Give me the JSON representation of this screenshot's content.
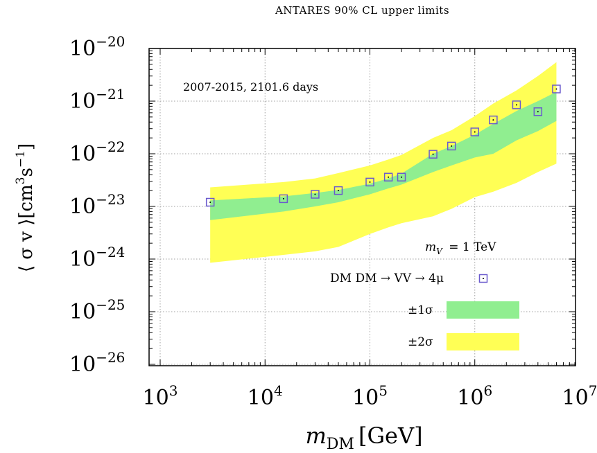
{
  "chart_data": {
    "type": "scatter",
    "title": "ANTARES 90% CL upper limits",
    "xlabel_var": "m",
    "xlabel_sub": "DM",
    "xlabel_unit": "[GeV]",
    "ylabel_parts": [
      "⟨ σ v ⟩[cm",
      "3",
      "s",
      "−1",
      "]"
    ],
    "xscale": "log",
    "yscale": "log",
    "xlim": [
      1000,
      10000000
    ],
    "ylim": [
      1e-26,
      1e-20
    ],
    "x_ticks": [
      {
        "base": "10",
        "exp": "3",
        "value": 1000
      },
      {
        "base": "10",
        "exp": "4",
        "value": 10000
      },
      {
        "base": "10",
        "exp": "5",
        "value": 100000
      },
      {
        "base": "10",
        "exp": "6",
        "value": 1000000
      },
      {
        "base": "10",
        "exp": "7",
        "value": 10000000
      }
    ],
    "y_ticks": [
      {
        "base": "10",
        "exp": "−20",
        "value": 1e-20
      },
      {
        "base": "10",
        "exp": "−21",
        "value": 1e-21
      },
      {
        "base": "10",
        "exp": "−22",
        "value": 1e-22
      },
      {
        "base": "10",
        "exp": "−23",
        "value": 1e-23
      },
      {
        "base": "10",
        "exp": "−24",
        "value": 1e-24
      },
      {
        "base": "10",
        "exp": "−25",
        "value": 1e-25
      },
      {
        "base": "10",
        "exp": "−26",
        "value": 1e-26
      }
    ],
    "grid": true,
    "annotation": "2007-2015, 2101.6 days",
    "legend": {
      "placement": "bottom-right",
      "header_var": "m",
      "header_sub": "V",
      "header_text": " = 1 TeV",
      "points_label": "DM DM → VV → 4μ",
      "band1_label": "±1σ",
      "band2_label": "±2σ"
    },
    "colors": {
      "band1": "#90ee90",
      "band2": "#ffff55",
      "marker": "#6a5acd",
      "grid": "#a0a0a0"
    },
    "series": [
      {
        "x": [
          3000,
          15000,
          30000,
          50000,
          100000,
          150000,
          200000,
          400000,
          600000,
          1000000,
          1500000,
          2500000,
          4000000,
          6000000
        ],
        "y": [
          1.2e-23,
          1.4e-23,
          1.7e-23,
          2e-23,
          2.9e-23,
          3.6e-23,
          3.6e-23,
          9.8e-23,
          1.4e-22,
          2.6e-22,
          4.4e-22,
          8.5e-22,
          6.3e-22,
          1.7e-21
        ]
      }
    ],
    "bands": {
      "x": [
        3000,
        15000,
        30000,
        50000,
        100000,
        150000,
        200000,
        400000,
        600000,
        1000000,
        1500000,
        2500000,
        4000000,
        6000000
      ],
      "sigma1_low": [
        5.5e-24,
        8e-24,
        1e-23,
        1.2e-23,
        1.7e-23,
        2.2e-23,
        2.6e-23,
        4.5e-23,
        6e-23,
        8.5e-23,
        1e-22,
        1.8e-22,
        2.7e-22,
        4.2e-22
      ],
      "sigma1_high": [
        1.3e-23,
        1.55e-23,
        1.8e-23,
        2.05e-23,
        2.7e-23,
        3.4e-23,
        4.2e-23,
        1e-22,
        1.4e-22,
        2.3e-22,
        3.7e-22,
        6.5e-22,
        1e-21,
        1.5e-21
      ],
      "sigma2_low": [
        8.5e-25,
        1.2e-24,
        1.4e-24,
        1.7e-24,
        3e-24,
        4e-24,
        4.8e-24,
        6.5e-24,
        9e-24,
        1.5e-23,
        1.9e-23,
        2.8e-23,
        4.5e-23,
        6.5e-23
      ],
      "sigma2_high": [
        2.3e-23,
        2.9e-23,
        3.4e-23,
        4.3e-23,
        6e-23,
        7.8e-23,
        9.5e-23,
        2e-22,
        2.8e-22,
        5.2e-22,
        9e-22,
        1.6e-21,
        3e-21,
        5.5e-21
      ]
    }
  }
}
